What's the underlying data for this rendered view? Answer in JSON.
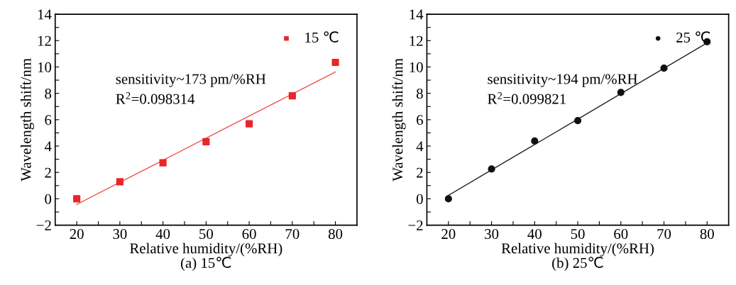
{
  "chart_data": [
    {
      "type": "scatter",
      "xlabel": "Relative humidity/(%RH)",
      "ylabel": "Wavelength shift/nm",
      "x": [
        20,
        30,
        40,
        50,
        60,
        70,
        80
      ],
      "series": [
        {
          "name": "15 ℃",
          "color": "#e8262a",
          "marker": "square",
          "values": [
            0,
            1.29,
            2.73,
            4.33,
            5.69,
            7.81,
            10.35
          ]
        },
        {
          "type": "line",
          "color": "#f0524f",
          "values": [
            -0.43,
            1.25,
            2.92,
            4.6,
            6.28,
            7.95,
            9.63
          ],
          "line_style": "solid"
        }
      ],
      "xlim": [
        15,
        85
      ],
      "xticks": [
        20,
        {
          "value": 25,
          "label": null
        },
        30,
        {
          "value": 35,
          "label": null
        },
        40,
        {
          "value": 45,
          "label": null
        },
        50,
        {
          "value": 55,
          "label": null
        },
        60,
        {
          "value": 65,
          "label": null
        },
        70,
        {
          "value": 75,
          "label": null
        },
        80
      ],
      "ylim": [
        -2,
        14
      ],
      "yticks": [
        {
          "value": -2,
          "label": "−2"
        },
        {
          "value": -1,
          "label": null
        },
        0,
        {
          "value": 1,
          "label": null
        },
        2,
        {
          "value": 3,
          "label": null
        },
        4,
        {
          "value": 5,
          "label": null
        },
        6,
        {
          "value": 7,
          "label": null
        },
        8,
        {
          "value": 9,
          "label": null
        },
        10,
        {
          "value": 11,
          "label": null
        },
        12,
        {
          "value": 13,
          "label": null
        },
        14
      ],
      "legend": "top right",
      "grid": false,
      "annotations": [
        "sensitivity~173 pm/%RH",
        "R$^{2}$=0.098314",
        "(a) 15℃"
      ]
    },
    {
      "type": "scatter",
      "xlabel": "Relative humidity/(%RH)",
      "ylabel": "Wavelength shift/nm",
      "x": [
        20,
        30,
        40,
        50,
        60,
        70,
        80
      ],
      "series": [
        {
          "name": "25 ℃",
          "color": "#111111",
          "marker": "circle",
          "values": [
            0,
            2.26,
            4.38,
            5.93,
            8.07,
            9.91,
            11.91
          ]
        },
        {
          "type": "line",
          "color": "#222222",
          "values": [
            0.26,
            2.19,
            4.12,
            6.04,
            7.97,
            9.9,
            11.83
          ],
          "line_style": "solid"
        }
      ],
      "xlim": [
        15,
        85
      ],
      "xticks": [
        20,
        {
          "value": 25,
          "label": null
        },
        30,
        {
          "value": 35,
          "label": null
        },
        40,
        {
          "value": 45,
          "label": null
        },
        50,
        {
          "value": 55,
          "label": null
        },
        60,
        {
          "value": 65,
          "label": null
        },
        70,
        {
          "value": 75,
          "label": null
        },
        80
      ],
      "ylim": [
        -2,
        14
      ],
      "yticks": [
        {
          "value": -2,
          "label": "−2"
        },
        {
          "value": -1,
          "label": null
        },
        0,
        {
          "value": 1,
          "label": null
        },
        2,
        {
          "value": 3,
          "label": null
        },
        4,
        {
          "value": 5,
          "label": null
        },
        6,
        {
          "value": 7,
          "label": null
        },
        8,
        {
          "value": 9,
          "label": null
        },
        10,
        {
          "value": 11,
          "label": null
        },
        12,
        {
          "value": 13,
          "label": null
        },
        14
      ],
      "legend": "top right",
      "grid": false,
      "annotations": [
        "sensitivity~194 pm/%RH",
        "R$^{2}$=0.099821",
        "(b) 25℃"
      ]
    }
  ]
}
